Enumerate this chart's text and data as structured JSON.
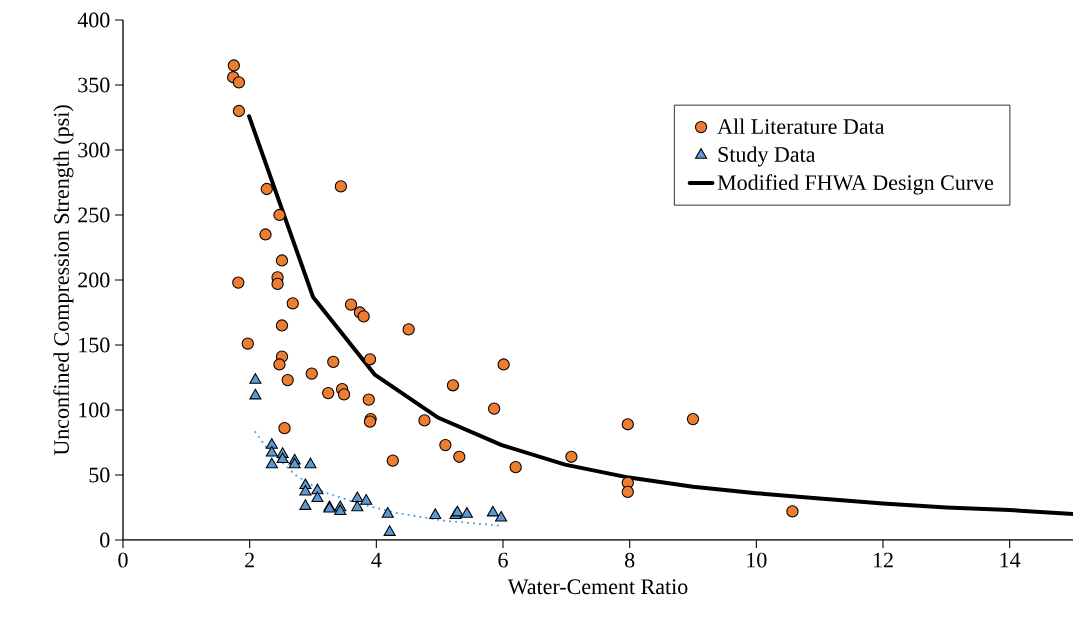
{
  "chart_data": {
    "type": "scatter",
    "xlabel": "Water-Cement Ratio",
    "ylabel": "Unconfined Compression Strength (psi)",
    "xlim": [
      0,
      15
    ],
    "ylim": [
      0,
      400
    ],
    "xticks": [
      0,
      2,
      4,
      6,
      8,
      10,
      12,
      14
    ],
    "yticks": [
      0,
      50,
      100,
      150,
      200,
      250,
      300,
      350,
      400
    ],
    "grid": false,
    "legend": "top right",
    "series": [
      {
        "name": "All Literature Data",
        "marker": "circle",
        "color": "#ed7d31",
        "x": [
          1.75,
          1.74,
          1.83,
          1.83,
          2.27,
          3.44,
          2.47,
          2.25,
          2.51,
          2.44,
          2.44,
          1.82,
          2.68,
          2.51,
          1.97,
          2.51,
          2.47,
          2.6,
          3.6,
          3.74,
          3.8,
          4.51,
          3.32,
          3.9,
          2.98,
          3.24,
          3.46,
          3.49,
          3.88,
          3.91,
          3.9,
          5.21,
          6.01,
          5.86,
          4.76,
          5.09,
          5.31,
          6.2,
          7.08,
          7.97,
          7.97,
          7.97,
          9.0,
          2.55,
          4.26,
          10.57
        ],
        "values": [
          365,
          356,
          352,
          330,
          270,
          272,
          250,
          235,
          215,
          202,
          197,
          198,
          182,
          165,
          151,
          141,
          135,
          123,
          181,
          175,
          172,
          162,
          137,
          139,
          128,
          113,
          116,
          112,
          108,
          93,
          91,
          119,
          135,
          101,
          92,
          73,
          64,
          56,
          64,
          89,
          44,
          37,
          93,
          86,
          61,
          22
        ]
      },
      {
        "name": "Study Data",
        "marker": "triangle",
        "color": "#5b9bd5",
        "x": [
          2.09,
          2.09,
          2.35,
          2.35,
          2.35,
          2.52,
          2.52,
          2.71,
          2.71,
          2.96,
          2.88,
          2.88,
          2.88,
          3.07,
          3.07,
          3.26,
          3.26,
          3.43,
          3.43,
          3.7,
          3.7,
          3.84,
          4.18,
          4.21,
          4.93,
          5.25,
          5.28,
          5.43,
          5.84,
          5.97
        ],
        "values": [
          123,
          111,
          73,
          67,
          58,
          66,
          62,
          61,
          58,
          58,
          42,
          37,
          26,
          38,
          32,
          25,
          24,
          25,
          22,
          32,
          25,
          30,
          20,
          6,
          19,
          19,
          21,
          20,
          21,
          17
        ]
      },
      {
        "name": "Modified FHWA Design Curve",
        "type": "line",
        "marker": "none",
        "line_style": "solid",
        "color": "#000000",
        "x": [
          1.99,
          3.0,
          3.98,
          4.98,
          5.98,
          6.98,
          7.99,
          9,
          10,
          11,
          12,
          13,
          14,
          15
        ],
        "values": [
          326,
          187,
          127,
          94,
          73,
          58,
          48,
          41,
          36,
          32,
          28,
          25,
          23,
          20
        ]
      },
      {
        "type": "line",
        "marker": "none",
        "line_style": "dotted",
        "color": "#5b9bd5",
        "x": [
          2.09,
          2.25,
          2.72,
          3.16,
          3.66,
          4.29,
          5.04,
          5.95
        ],
        "values": [
          83,
          72,
          50,
          37,
          29,
          21,
          15,
          11
        ]
      }
    ]
  }
}
